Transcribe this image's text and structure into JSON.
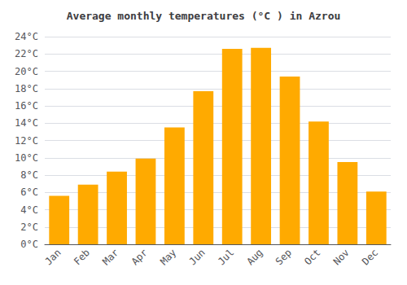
{
  "chart_data": {
    "type": "bar",
    "title": "Average monthly temperatures (°C ) in Azrou",
    "categories": [
      "Jan",
      "Feb",
      "Mar",
      "Apr",
      "May",
      "Jun",
      "Jul",
      "Aug",
      "Sep",
      "Oct",
      "Nov",
      "Dec"
    ],
    "values": [
      5.6,
      6.9,
      8.4,
      9.9,
      13.5,
      17.7,
      22.6,
      22.7,
      19.4,
      14.2,
      9.5,
      6.1
    ],
    "color": "#FFAA00",
    "ylim": [
      0,
      24
    ],
    "yticks": [
      {
        "value": 0,
        "label": "0°C"
      },
      {
        "value": 2,
        "label": "2°C"
      },
      {
        "value": 4,
        "label": "4°C"
      },
      {
        "value": 6,
        "label": "6°C"
      },
      {
        "value": 8,
        "label": "8°C"
      },
      {
        "value": 10,
        "label": "10°C"
      },
      {
        "value": 12,
        "label": "12°C"
      },
      {
        "value": 14,
        "label": "14°C"
      },
      {
        "value": 16,
        "label": "16°C"
      },
      {
        "value": 18,
        "label": "18°C"
      },
      {
        "value": 20,
        "label": "20°C"
      },
      {
        "value": 22,
        "label": "22°C"
      },
      {
        "value": 24,
        "label": "24°C"
      }
    ],
    "grid": true
  }
}
